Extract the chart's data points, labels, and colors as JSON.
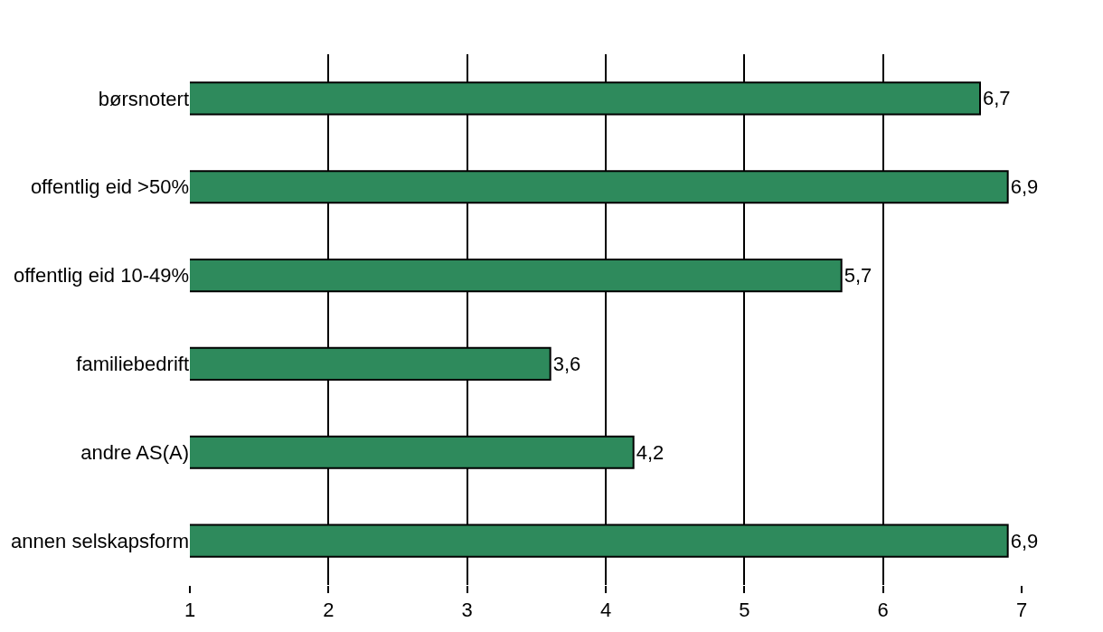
{
  "chart_data": {
    "type": "bar",
    "orientation": "horizontal",
    "categories": [
      "børsnotert",
      "offentlig eid >50%",
      "offentlig eid 10-49%",
      "familiebedrift",
      "andre AS(A)",
      "annen selskapsform"
    ],
    "values": [
      6.7,
      6.9,
      5.7,
      3.6,
      4.2,
      6.9
    ],
    "value_labels": [
      "6,7",
      "6,9",
      "5,7",
      "3,6",
      "4,2",
      "6,9"
    ],
    "color": "#2e8a5c",
    "xlim": [
      1,
      7
    ],
    "xticks": [
      1,
      2,
      3,
      4,
      5,
      6,
      7
    ],
    "grid": "x",
    "legend": false
  }
}
